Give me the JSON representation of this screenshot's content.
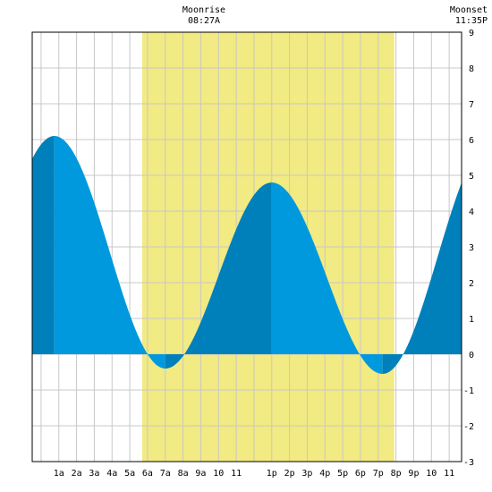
{
  "header": {
    "moonrise_title": "Moonrise",
    "moonrise_time": "08:27A",
    "moonset_title": "Moonset",
    "moonset_time": "11:35P"
  },
  "chart_data": {
    "type": "area",
    "title": "",
    "xlabel": "",
    "ylabel": "",
    "x_unit": "hours since midnight",
    "xlim": [
      -0.5,
      23.7
    ],
    "ylim": [
      -3,
      9
    ],
    "y_ticks": [
      -3,
      -2,
      -1,
      0,
      1,
      2,
      3,
      4,
      5,
      6,
      7,
      8,
      9
    ],
    "x_tick_labels": [
      "1a",
      "2a",
      "3a",
      "4a",
      "5a",
      "6a",
      "7a",
      "8a",
      "9a",
      "10",
      "11",
      "1p",
      "2p",
      "3p",
      "4p",
      "5p",
      "6p",
      "7p",
      "8p",
      "9p",
      "10",
      "11"
    ],
    "x_tick_hours": [
      1,
      2,
      3,
      4,
      5,
      6,
      7,
      8,
      9,
      10,
      11,
      13,
      14,
      15,
      16,
      17,
      18,
      19,
      20,
      21,
      22,
      23
    ],
    "grid": true,
    "daylight_band": [
      5.7,
      19.9
    ],
    "tide_extremes": [
      {
        "hour": 0.75,
        "height": 6.1,
        "kind": "high"
      },
      {
        "hour": 7.0,
        "height": -0.4,
        "kind": "low"
      },
      {
        "hour": 13.0,
        "height": 4.8,
        "kind": "high"
      },
      {
        "hour": 19.25,
        "height": -0.55,
        "kind": "low"
      }
    ],
    "series": [
      {
        "x": [
          -0.5,
          0.75,
          7.0,
          13.0,
          19.25,
          23.7
        ],
        "y": [
          5.7,
          6.1,
          -0.4,
          4.8,
          -0.55,
          4.6
        ]
      }
    ],
    "colors": {
      "daylight": "#f2ea82",
      "water_light": "#0099dd",
      "water_dark": "#0080bb",
      "grid": "#c8c8c8"
    }
  }
}
